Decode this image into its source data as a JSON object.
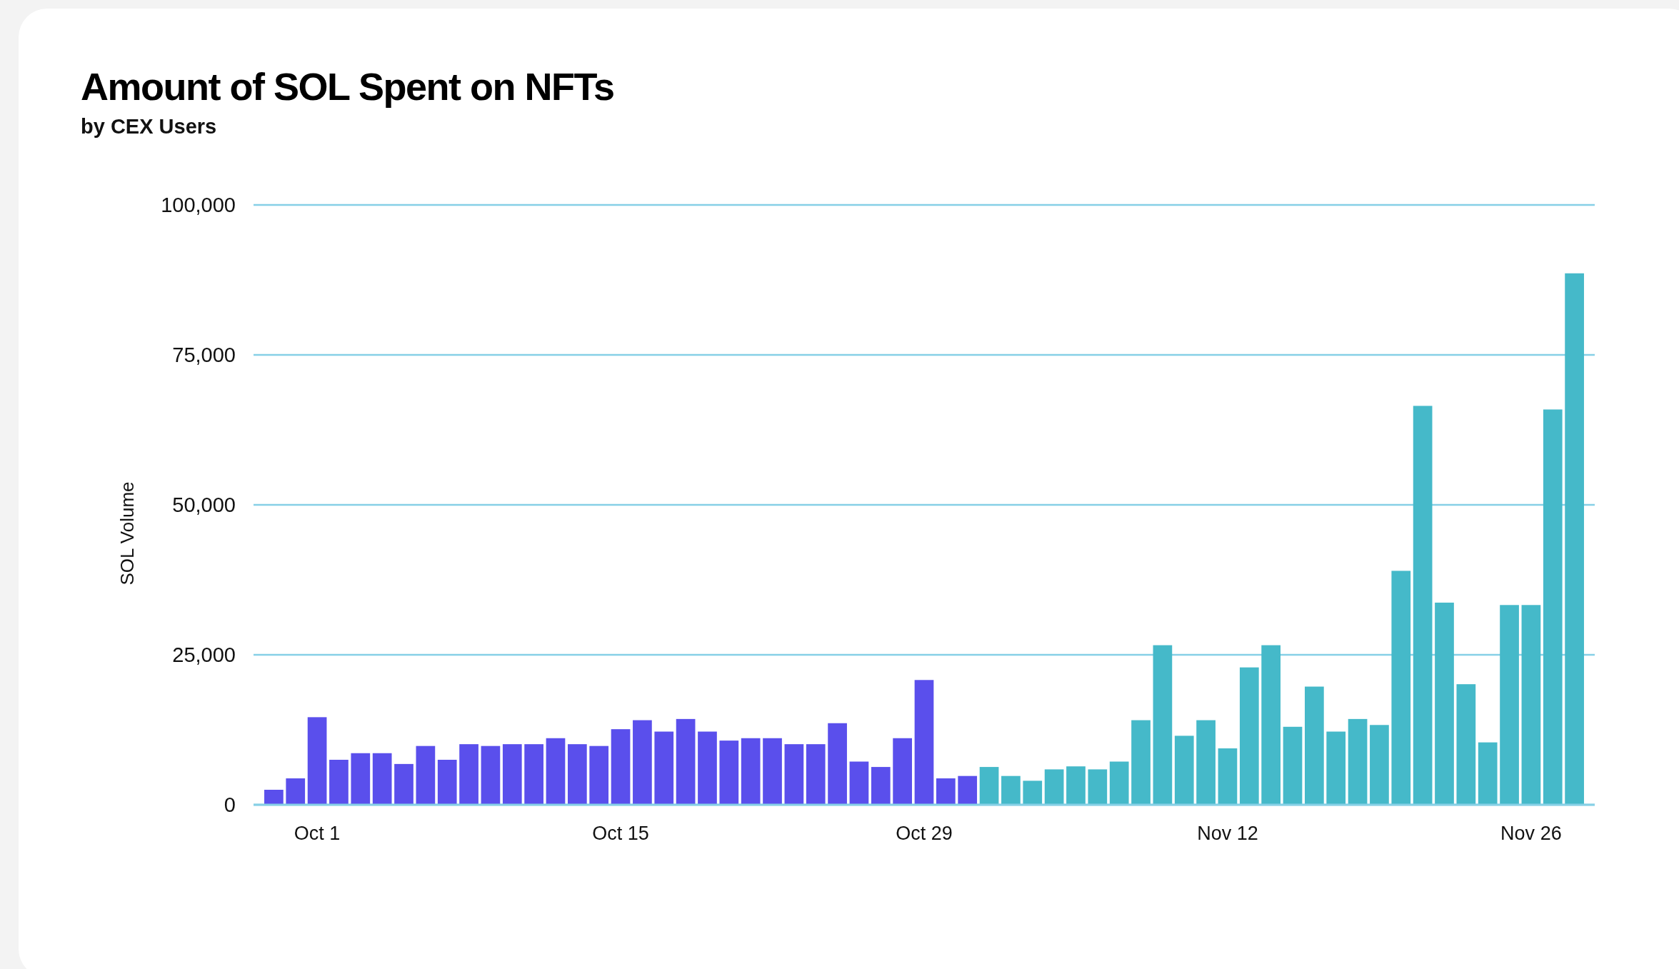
{
  "chart_data": {
    "type": "bar",
    "title": "Amount of SOL Spent on NFTs",
    "subtitle": "by CEX Users",
    "ylabel": "SOL Volume",
    "categories": [
      null,
      null,
      "Oct 1",
      null,
      null,
      null,
      null,
      null,
      null,
      null,
      null,
      null,
      null,
      null,
      null,
      null,
      "Oct 15",
      null,
      null,
      null,
      null,
      null,
      null,
      null,
      null,
      null,
      null,
      null,
      null,
      null,
      "Oct 29",
      null,
      null,
      null,
      null,
      null,
      null,
      null,
      null,
      null,
      null,
      null,
      null,
      null,
      "Nov 12",
      null,
      null,
      null,
      null,
      null,
      null,
      null,
      null,
      null,
      null,
      null,
      null,
      null,
      "Nov 26",
      null,
      null
    ],
    "values": [
      2500,
      4400,
      14600,
      7500,
      8600,
      8600,
      6800,
      9800,
      7500,
      10100,
      9800,
      10100,
      10100,
      11100,
      10100,
      9800,
      12600,
      14100,
      12200,
      14300,
      12200,
      10700,
      11100,
      11100,
      10100,
      10100,
      13600,
      7200,
      6300,
      11100,
      20800,
      4400,
      4800,
      6300,
      4800,
      4000,
      5900,
      6400,
      5900,
      7200,
      14100,
      26600,
      11500,
      14100,
      9400,
      22900,
      26600,
      13000,
      19700,
      12200,
      14300,
      13300,
      39000,
      66500,
      33700,
      20100,
      10400,
      33300,
      33300,
      65900,
      88600
    ],
    "colors": [
      "#5a4fec",
      "#5a4fec",
      "#5a4fec",
      "#5a4fec",
      "#5a4fec",
      "#5a4fec",
      "#5a4fec",
      "#5a4fec",
      "#5a4fec",
      "#5a4fec",
      "#5a4fec",
      "#5a4fec",
      "#5a4fec",
      "#5a4fec",
      "#5a4fec",
      "#5a4fec",
      "#5a4fec",
      "#5a4fec",
      "#5a4fec",
      "#5a4fec",
      "#5a4fec",
      "#5a4fec",
      "#5a4fec",
      "#5a4fec",
      "#5a4fec",
      "#5a4fec",
      "#5a4fec",
      "#5a4fec",
      "#5a4fec",
      "#5a4fec",
      "#5a4fec",
      "#5a4fec",
      "#5a4fec",
      "#45b9c9",
      "#45b9c9",
      "#45b9c9",
      "#45b9c9",
      "#45b9c9",
      "#45b9c9",
      "#45b9c9",
      "#45b9c9",
      "#45b9c9",
      "#45b9c9",
      "#45b9c9",
      "#45b9c9",
      "#45b9c9",
      "#45b9c9",
      "#45b9c9",
      "#45b9c9",
      "#45b9c9",
      "#45b9c9",
      "#45b9c9",
      "#45b9c9",
      "#45b9c9",
      "#45b9c9",
      "#45b9c9",
      "#45b9c9",
      "#45b9c9",
      "#45b9c9",
      "#45b9c9",
      "#45b9c9"
    ],
    "ylim": [
      0,
      100000
    ],
    "yticks": [
      0,
      {
        "value": 25000,
        "label": "25,000"
      },
      {
        "value": 50000,
        "label": "50,000"
      },
      {
        "value": 75000,
        "label": "75,000"
      },
      {
        "value": 100000,
        "label": "100,000"
      }
    ],
    "grid": "y"
  }
}
